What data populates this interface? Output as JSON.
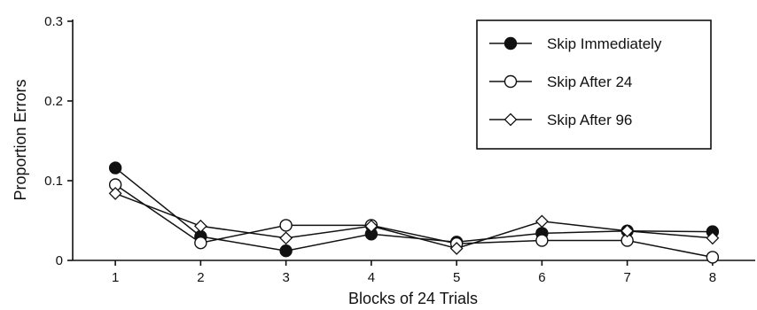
{
  "chart_data": {
    "type": "line",
    "title": "",
    "xlabel": "Blocks of 24 Trials",
    "ylabel": "Proportion Errors",
    "categories": [
      "1",
      "2",
      "3",
      "4",
      "5",
      "6",
      "7",
      "8"
    ],
    "x": [
      1,
      2,
      3,
      4,
      5,
      6,
      7,
      8
    ],
    "xlim": [
      0.5,
      8.5
    ],
    "ylim": [
      0,
      0.3
    ],
    "y_ticks": [
      0,
      0.1,
      0.2,
      0.3
    ],
    "y_tick_labels": [
      "0",
      "0.1",
      "0.2",
      "0.3"
    ],
    "grid": false,
    "legend_position": "top-right",
    "series": [
      {
        "name": "Skip Immediately",
        "marker": "filled-circle",
        "values": [
          0.116,
          0.03,
          0.012,
          0.033,
          0.023,
          0.034,
          0.037,
          0.036
        ]
      },
      {
        "name": "Skip After 24",
        "marker": "open-circle",
        "values": [
          0.095,
          0.022,
          0.044,
          0.044,
          0.021,
          0.025,
          0.025,
          0.004
        ]
      },
      {
        "name": "Skip After 96",
        "marker": "open-diamond",
        "values": [
          0.084,
          0.043,
          0.028,
          0.043,
          0.015,
          0.049,
          0.037,
          0.028
        ]
      }
    ]
  }
}
